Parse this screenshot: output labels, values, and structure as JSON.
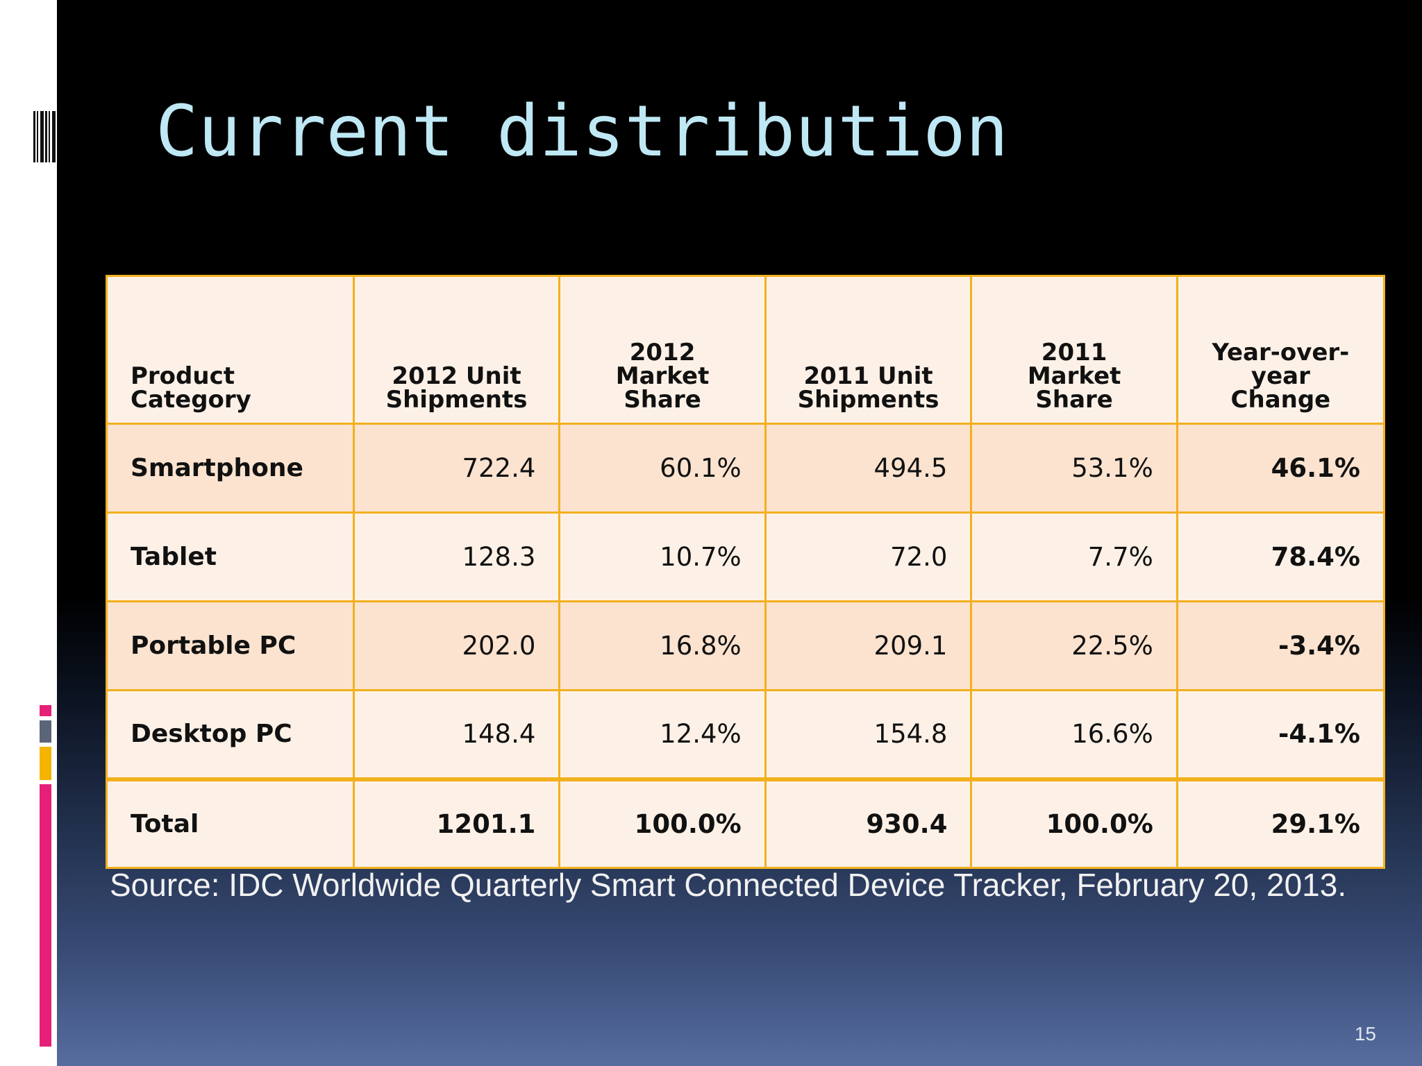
{
  "slide": {
    "title": "Current distribution",
    "source": "Source: IDC Worldwide Quarterly Smart Connected Device Tracker, February 20, 2013.",
    "page_number": "15"
  },
  "table": {
    "headers": [
      "Product Category",
      "2012 Unit Shipments",
      "2012 Market Share",
      "2011 Unit Shipments",
      "2011 Market Share",
      "Year-over-year Change"
    ],
    "rows": [
      {
        "category": "Smartphone",
        "units_2012": "722.4",
        "share_2012": "60.1%",
        "units_2011": "494.5",
        "share_2011": "53.1%",
        "yoy": "46.1%"
      },
      {
        "category": "Tablet",
        "units_2012": "128.3",
        "share_2012": "10.7%",
        "units_2011": "72.0",
        "share_2011": "7.7%",
        "yoy": "78.4%"
      },
      {
        "category": "Portable PC",
        "units_2012": "202.0",
        "share_2012": "16.8%",
        "units_2011": "209.1",
        "share_2011": "22.5%",
        "yoy": "-3.4%"
      },
      {
        "category": "Desktop PC",
        "units_2012": "148.4",
        "share_2012": "12.4%",
        "units_2011": "154.8",
        "share_2011": "16.6%",
        "yoy": "-4.1%"
      }
    ],
    "total": {
      "category": "Total",
      "units_2012": "1201.1",
      "share_2012": "100.0%",
      "units_2011": "930.4",
      "share_2011": "100.0%",
      "yoy": "29.1%"
    }
  },
  "colors": {
    "title": "#bfe8f5",
    "table_border": "#f2b01e",
    "row_shaded": "#fce3cf",
    "row_light": "#fdf1e7",
    "accent_pink": "#e61f78",
    "accent_gold": "#f4b400",
    "accent_gray": "#5a6578"
  }
}
